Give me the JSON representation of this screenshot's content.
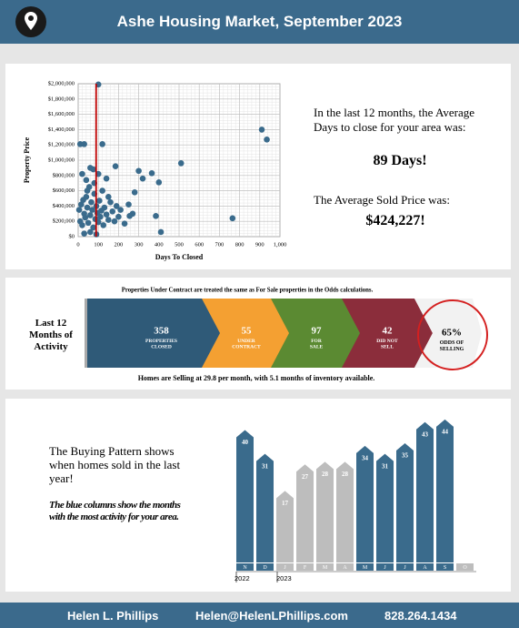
{
  "header": {
    "title": "Ashe Housing Market, September 2023"
  },
  "stats": {
    "days_text": "In the last 12 months, the Average Days to close for your area was:",
    "days_value": "89 Days!",
    "price_text": "The Average Sold Price was:",
    "price_value": "$424,227!"
  },
  "activity": {
    "note": "Properties Under Contract are treated the same as For Sale properties in the Odds calculations.",
    "label": "Last 12 Months of Activity",
    "segments": [
      {
        "value": 358,
        "label": "PROPERTIES CLOSED",
        "color": "#2f5a78"
      },
      {
        "value": 55,
        "label": "UNDER CONTRACT",
        "color": "#f4a032"
      },
      {
        "value": 97,
        "label": "FOR SALE",
        "color": "#5b8a32"
      },
      {
        "value": 42,
        "label": "DID NOT SELL",
        "color": "#8b2d3b"
      }
    ],
    "odds": {
      "value": "65%",
      "label": "ODDS OF SELLING"
    },
    "summary": "Homes are Selling at 29.8 per month, with 5.1 months of inventory available."
  },
  "pattern": {
    "text": "The Buying Pattern shows when homes sold in the last year!",
    "note": "The blue columns show the months with the most activity for your area."
  },
  "footer": {
    "name": "Helen L. Phillips",
    "email": "Helen@HelenLPhillips.com",
    "phone": "828.264.1434"
  },
  "chart_data": [
    {
      "type": "scatter",
      "x_label": "Days To Closed",
      "y_label": "Property Price",
      "color": "#3a6b8c",
      "grid": true,
      "vline": 89,
      "vline_color": "#c00000",
      "xlim": [
        0,
        1000
      ],
      "xticks": [
        0,
        100,
        200,
        300,
        400,
        500,
        600,
        700,
        800,
        900,
        {
          "value": 1000,
          "label": "1,000"
        }
      ],
      "ylim": [
        0,
        2000000
      ],
      "yticks": [
        {
          "value": 0,
          "label": "$0"
        },
        {
          "value": 200000,
          "label": "$200,000"
        },
        {
          "value": 400000,
          "label": "$400,000"
        },
        {
          "value": 600000,
          "label": "$600,000"
        },
        {
          "value": 800000,
          "label": "$800,000"
        },
        {
          "value": 1000000,
          "label": "$1,000,000"
        },
        {
          "value": 1200000,
          "label": "$1,200,000"
        },
        {
          "value": 1400000,
          "label": "$1,400,000"
        },
        {
          "value": 1600000,
          "label": "$1,600,000"
        },
        {
          "value": 1800000,
          "label": "$1,800,000"
        },
        {
          "value": 2000000,
          "label": "$2,000,000"
        }
      ],
      "x": [
        5,
        10,
        15,
        20,
        25,
        30,
        35,
        40,
        45,
        50,
        55,
        60,
        65,
        70,
        75,
        80,
        85,
        90,
        95,
        100,
        105,
        110,
        115,
        120,
        125,
        130,
        140,
        150,
        160,
        170,
        180,
        190,
        200,
        210,
        230,
        250,
        270,
        20,
        40,
        60,
        80,
        100,
        140,
        30,
        60,
        90,
        10,
        30,
        120,
        100,
        910,
        935,
        510,
        300,
        365,
        320,
        185,
        400,
        280,
        765,
        410,
        385,
        255,
        150,
        45,
        75
      ],
      "values": [
        350000,
        200000,
        420000,
        150000,
        480000,
        300000,
        250000,
        520000,
        380000,
        180000,
        650000,
        280000,
        450000,
        350000,
        120000,
        560000,
        230000,
        400000,
        310000,
        190000,
        470000,
        260000,
        340000,
        600000,
        150000,
        380000,
        290000,
        220000,
        450000,
        330000,
        200000,
        400000,
        260000,
        350000,
        170000,
        420000,
        300000,
        820000,
        740000,
        900000,
        700000,
        820000,
        760000,
        40000,
        60000,
        30000,
        1210000,
        1210000,
        1210000,
        1990000,
        1400000,
        1270000,
        960000,
        860000,
        830000,
        760000,
        920000,
        710000,
        580000,
        240000,
        60000,
        270000,
        270000,
        520000,
        600000,
        880000
      ]
    },
    {
      "type": "bar",
      "categories": [
        "N",
        "D",
        "J",
        "F",
        "M",
        "A",
        "M",
        "J",
        "J",
        "A",
        "S",
        "O"
      ],
      "values": [
        40,
        31,
        17,
        27,
        28,
        28,
        34,
        31,
        35,
        43,
        44,
        null
      ],
      "colors": [
        "#3a6b8c",
        "#3a6b8c",
        "#bdbdbd",
        "#bdbdbd",
        "#bdbdbd",
        "#bdbdbd",
        "#3a6b8c",
        "#3a6b8c",
        "#3a6b8c",
        "#3a6b8c",
        "#3a6b8c",
        "#bdbdbd"
      ],
      "ylim": [
        -10,
        46
      ],
      "years": [
        "2022",
        "2023"
      ]
    }
  ]
}
